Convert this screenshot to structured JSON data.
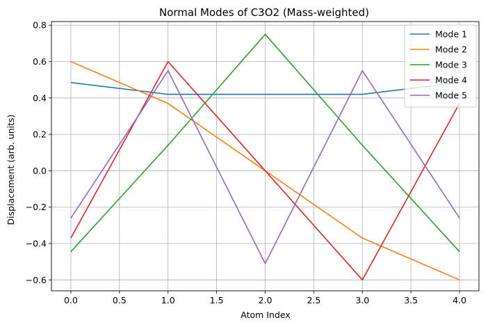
{
  "chart_data": {
    "type": "line",
    "title": "Normal Modes of C3O2 (Mass-weighted)",
    "xlabel": "Atom Index",
    "ylabel": "Displacement (arb. units)",
    "xlim": [
      -0.2,
      4.2
    ],
    "ylim": [
      -0.66,
      0.82
    ],
    "xticks": [
      0.0,
      0.5,
      1.0,
      1.5,
      2.0,
      2.5,
      3.0,
      3.5,
      4.0
    ],
    "xtick_labels": [
      "0.0",
      "0.5",
      "1.0",
      "1.5",
      "2.0",
      "2.5",
      "3.0",
      "3.5",
      "4.0"
    ],
    "yticks": [
      -0.6,
      -0.4,
      -0.2,
      0.0,
      0.2,
      0.4,
      0.6,
      0.8
    ],
    "ytick_labels": [
      "−0.6",
      "−0.4",
      "−0.2",
      "0.0",
      "0.2",
      "0.4",
      "0.6",
      "0.8"
    ],
    "grid": true,
    "legend_position": "top-right",
    "x": [
      0,
      1,
      2,
      3,
      4
    ],
    "series": [
      {
        "name": "Mode 1",
        "color": "#1f77b4",
        "values": [
          0.485,
          0.42,
          0.42,
          0.42,
          0.485
        ]
      },
      {
        "name": "Mode 2",
        "color": "#ff7f0e",
        "values": [
          0.6,
          0.37,
          0.0,
          -0.37,
          -0.6
        ]
      },
      {
        "name": "Mode 3",
        "color": "#2ca02c",
        "values": [
          -0.445,
          0.14,
          0.75,
          0.14,
          -0.445
        ]
      },
      {
        "name": "Mode 4",
        "color": "#d62728",
        "values": [
          -0.37,
          0.6,
          0.0,
          -0.6,
          0.37
        ]
      },
      {
        "name": "Mode 5",
        "color": "#9467bd",
        "values": [
          -0.26,
          0.55,
          -0.51,
          0.55,
          -0.26
        ]
      }
    ]
  }
}
